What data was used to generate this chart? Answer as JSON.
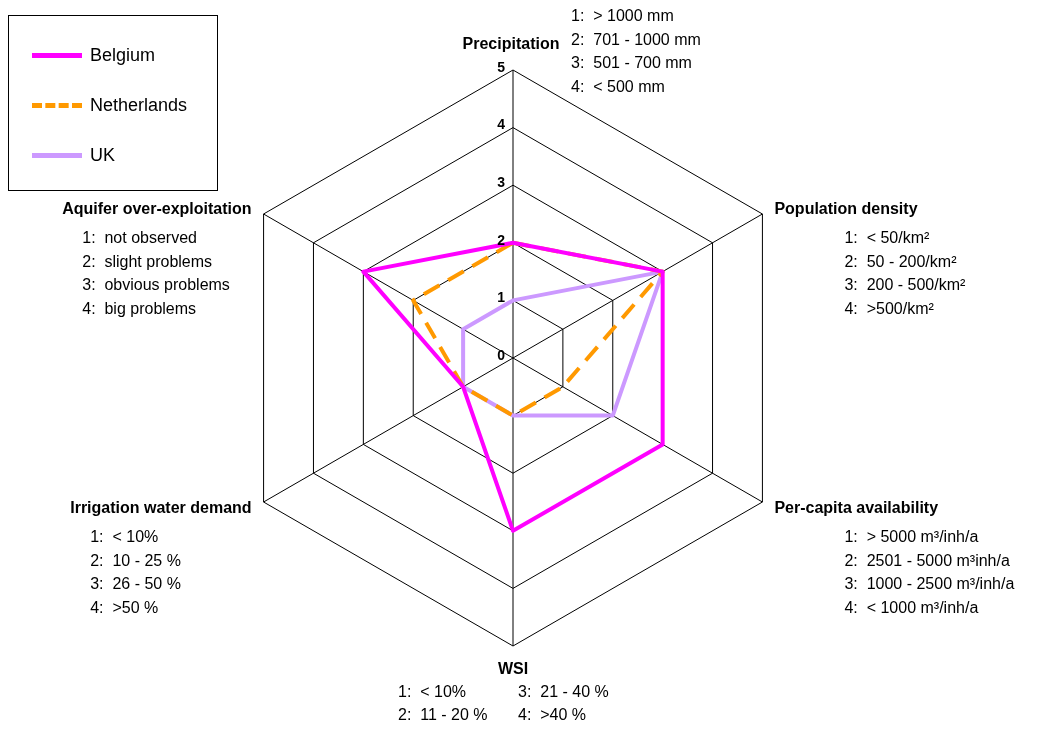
{
  "chart_data": {
    "type": "radar",
    "categories": [
      "Precipitation",
      "Population density",
      "Per-capita availability",
      "WSI",
      "Irrigation water demand",
      "Aquifer over-exploitation"
    ],
    "series": [
      {
        "name": "Belgium",
        "color": "#ff00ff",
        "line_style": "solid",
        "values": [
          2,
          3,
          3,
          3,
          1,
          3
        ]
      },
      {
        "name": "Netherlands",
        "color": "#ff9900",
        "line_style": "dashed",
        "values": [
          2,
          3,
          1,
          1,
          1,
          2
        ]
      },
      {
        "name": "UK",
        "color": "#cc99ff",
        "line_style": "solid",
        "values": [
          1,
          3,
          2,
          1,
          1,
          1
        ]
      }
    ],
    "ylim": [
      0,
      5
    ],
    "yticks": [
      0,
      1,
      2,
      3,
      4,
      5
    ],
    "grid": true,
    "legend": "top left",
    "marker": "none",
    "annotations": [
      "1:  > 1000 mm",
      "2:  701 - 1000 mm",
      "3:  501 - 700 mm",
      "4:  < 500 mm",
      "1:  < 50/km²",
      "2:  50 - 200/km²",
      "3:  200 - 500/km²",
      "4:  >500/km²",
      "1:  > 5000 m³/inh/a",
      "2:  2501 - 5000 m³inh/a",
      "3:  1000 - 2500 m³/inh/a",
      "4:  < 1000 m³/inh/a",
      "1:  < 10%",
      "2:  11 - 20 %",
      "3:  21 - 40 %",
      "4:  >40 %",
      "1:  < 10%",
      "2:  10 - 25 %",
      "3:  26 - 50 %",
      "4:  >50 %",
      "1:  not observed",
      "2:  slight problems",
      "3:  obvious problems",
      "4:  big problems"
    ]
  }
}
